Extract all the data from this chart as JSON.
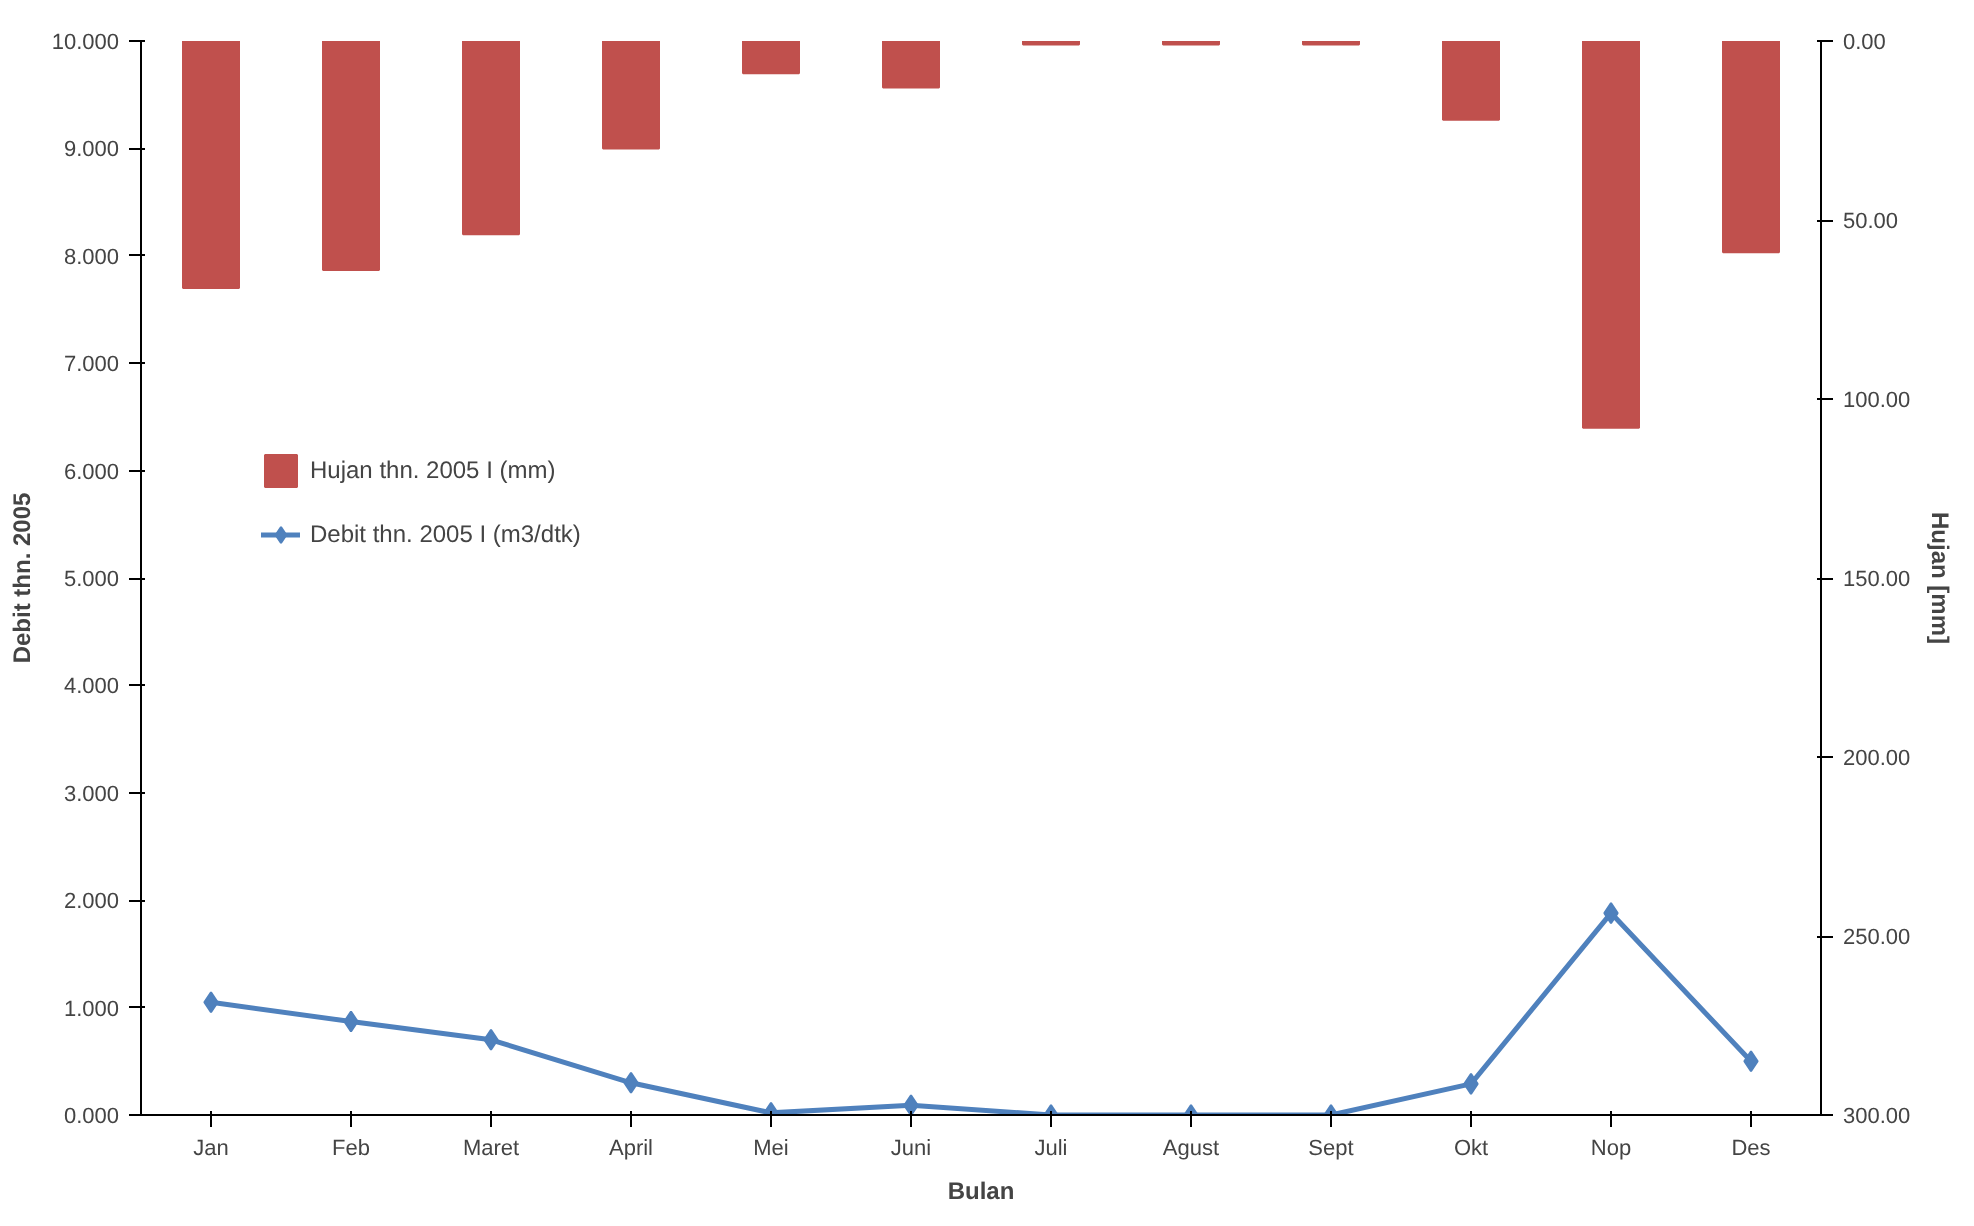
{
  "chart_data": {
    "type": "bar",
    "xlabel": "Bulan",
    "ylabel": "Debit thn. 2005",
    "y2label": "Hujan [mm]",
    "categories": [
      "Jan",
      "Feb",
      "Maret",
      "April",
      "Mei",
      "Juni",
      "Juli",
      "Agust",
      "Sept",
      "Okt",
      "Nop",
      "Des"
    ],
    "series": [
      {
        "name": "Hujan thn. 2005 I (mm)",
        "axis": "y2",
        "color": "#c0504d",
        "values": [
          69,
          64,
          54,
          30,
          9,
          13,
          1,
          1,
          1,
          22,
          108,
          59
        ]
      },
      {
        "name": "Debit thn. 2005 I (m3/dtk)",
        "type": "line",
        "color": "#4f81bd",
        "marker": "diamond",
        "values": [
          1.05,
          0.87,
          0.7,
          0.3,
          0.02,
          0.09,
          0.0,
          0.0,
          0.0,
          0.29,
          1.88,
          0.5
        ]
      }
    ],
    "ylim": [
      0,
      10
    ],
    "yticks": [
      {
        "value": 0,
        "label": "0.000"
      },
      {
        "value": 1,
        "label": "1.000"
      },
      {
        "value": 2,
        "label": "2.000"
      },
      {
        "value": 3,
        "label": "3.000"
      },
      {
        "value": 4,
        "label": "4.000"
      },
      {
        "value": 5,
        "label": "5.000"
      },
      {
        "value": 6,
        "label": "6.000"
      },
      {
        "value": 7,
        "label": "7.000"
      },
      {
        "value": 8,
        "label": "8.000"
      },
      {
        "value": 9,
        "label": "9.000"
      },
      {
        "value": 10,
        "label": "10.000"
      }
    ],
    "y2lim": [
      300,
      0
    ],
    "y2ticks": [
      {
        "value": 0,
        "label": "0.00"
      },
      {
        "value": 50,
        "label": "50.00"
      },
      {
        "value": 100,
        "label": "100.00"
      },
      {
        "value": 150,
        "label": "150.00"
      },
      {
        "value": 200,
        "label": "200.00"
      },
      {
        "value": 250,
        "label": "250.00"
      },
      {
        "value": 300,
        "label": "300.00"
      }
    ],
    "grid": false,
    "legend": "left"
  }
}
